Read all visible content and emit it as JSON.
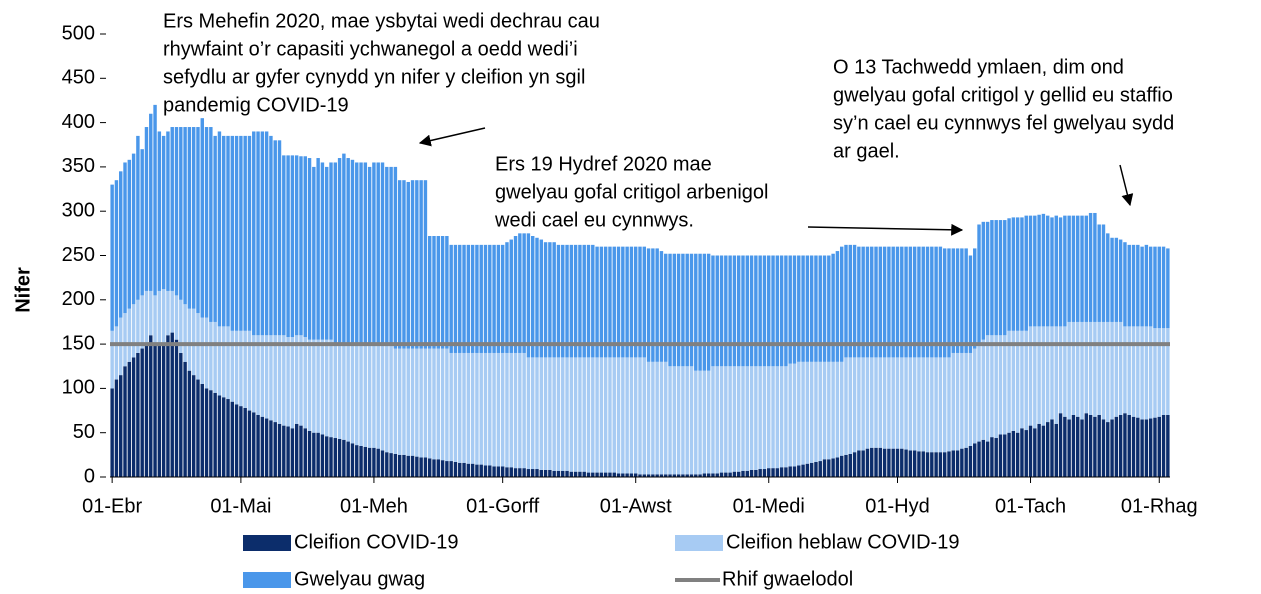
{
  "chart_data": {
    "type": "bar",
    "stacked": true,
    "y_label": "Nifer",
    "ylim": [
      0,
      500
    ],
    "yticks": [
      0,
      50,
      100,
      150,
      200,
      250,
      300,
      350,
      400,
      450,
      500
    ],
    "categories": [
      "01-Ebr",
      null,
      null,
      null,
      null,
      null,
      null,
      null,
      null,
      null,
      null,
      null,
      null,
      null,
      null,
      null,
      null,
      null,
      null,
      null,
      null,
      null,
      null,
      null,
      null,
      null,
      null,
      null,
      null,
      null,
      "01-Mai",
      null,
      null,
      null,
      null,
      null,
      null,
      null,
      null,
      null,
      null,
      null,
      null,
      null,
      null,
      null,
      null,
      null,
      null,
      null,
      null,
      null,
      null,
      null,
      null,
      null,
      null,
      null,
      null,
      null,
      null,
      "01-Meh",
      null,
      null,
      null,
      null,
      null,
      null,
      null,
      null,
      null,
      null,
      null,
      null,
      null,
      null,
      null,
      null,
      null,
      null,
      null,
      null,
      null,
      null,
      null,
      null,
      null,
      null,
      null,
      null,
      null,
      "01-Gorff",
      null,
      null,
      null,
      null,
      null,
      null,
      null,
      null,
      null,
      null,
      null,
      null,
      null,
      null,
      null,
      null,
      null,
      null,
      null,
      null,
      null,
      null,
      null,
      null,
      null,
      null,
      null,
      null,
      null,
      null,
      "01-Awst",
      null,
      null,
      null,
      null,
      null,
      null,
      null,
      null,
      null,
      null,
      null,
      null,
      null,
      null,
      null,
      null,
      null,
      null,
      null,
      null,
      null,
      null,
      null,
      null,
      null,
      null,
      null,
      null,
      null,
      null,
      "01-Medi",
      null,
      null,
      null,
      null,
      null,
      null,
      null,
      null,
      null,
      null,
      null,
      null,
      null,
      null,
      null,
      null,
      null,
      null,
      null,
      null,
      null,
      null,
      null,
      null,
      null,
      null,
      null,
      null,
      null,
      "01-Hyd",
      null,
      null,
      null,
      null,
      null,
      null,
      null,
      null,
      null,
      null,
      null,
      null,
      null,
      null,
      null,
      null,
      null,
      null,
      null,
      null,
      null,
      null,
      null,
      null,
      null,
      null,
      null,
      null,
      null,
      null,
      "01-Tach",
      null,
      null,
      null,
      null,
      null,
      null,
      null,
      null,
      null,
      null,
      null,
      null,
      null,
      null,
      null,
      null,
      null,
      null,
      null,
      null,
      null,
      null,
      null,
      null,
      null,
      null,
      null,
      null,
      null,
      "01-Rhag",
      null,
      null
    ],
    "series": [
      {
        "name": "Cleifion COVID-19",
        "color": "#0c2d6b",
        "values": [
          100,
          110,
          115,
          125,
          130,
          135,
          140,
          145,
          150,
          160,
          150,
          150,
          150,
          160,
          163,
          155,
          140,
          130,
          120,
          115,
          110,
          105,
          100,
          98,
          95,
          92,
          90,
          88,
          85,
          82,
          80,
          78,
          75,
          73,
          70,
          68,
          66,
          64,
          62,
          60,
          58,
          57,
          55,
          60,
          58,
          55,
          52,
          50,
          50,
          48,
          46,
          45,
          44,
          43,
          42,
          40,
          38,
          36,
          35,
          34,
          33,
          33,
          32,
          30,
          28,
          27,
          26,
          25,
          25,
          24,
          24,
          23,
          22,
          22,
          21,
          20,
          20,
          19,
          18,
          18,
          17,
          16,
          16,
          15,
          15,
          14,
          14,
          13,
          13,
          12,
          12,
          12,
          11,
          11,
          10,
          10,
          10,
          9,
          9,
          9,
          8,
          8,
          8,
          7,
          7,
          7,
          7,
          6,
          6,
          6,
          6,
          5,
          5,
          5,
          5,
          5,
          5,
          5,
          4,
          4,
          4,
          4,
          4,
          3,
          3,
          3,
          3,
          3,
          3,
          3,
          3,
          3,
          3,
          3,
          3,
          3,
          3,
          3,
          4,
          4,
          4,
          4,
          5,
          5,
          5,
          6,
          6,
          7,
          7,
          8,
          8,
          9,
          9,
          10,
          10,
          10,
          11,
          11,
          12,
          12,
          13,
          14,
          15,
          16,
          17,
          18,
          20,
          20,
          21,
          22,
          24,
          25,
          26,
          28,
          30,
          30,
          32,
          33,
          33,
          33,
          32,
          32,
          32,
          32,
          32,
          31,
          30,
          30,
          29,
          29,
          28,
          28,
          28,
          28,
          28,
          29,
          30,
          30,
          32,
          33,
          35,
          38,
          40,
          42,
          40,
          45,
          44,
          48,
          48,
          50,
          52,
          50,
          55,
          53,
          58,
          55,
          60,
          58,
          62,
          65,
          60,
          72,
          68,
          65,
          70,
          68,
          65,
          72,
          70,
          68,
          70,
          65,
          62,
          65,
          68,
          70,
          72,
          70,
          68,
          67,
          65,
          65,
          66,
          67,
          68,
          70,
          70
        ]
      },
      {
        "name": "Cleifion heblaw COVID-19",
        "color": "#a7cbf3",
        "values": [
          65,
          60,
          65,
          60,
          60,
          60,
          60,
          60,
          60,
          50,
          55,
          60,
          62,
          50,
          47,
          50,
          60,
          65,
          70,
          75,
          75,
          75,
          80,
          77,
          80,
          78,
          80,
          82,
          80,
          83,
          85,
          87,
          90,
          87,
          90,
          92,
          94,
          96,
          98,
          100,
          102,
          101,
          103,
          100,
          102,
          103,
          103,
          105,
          105,
          107,
          109,
          110,
          106,
          107,
          108,
          110,
          112,
          114,
          115,
          116,
          117,
          117,
          118,
          118,
          120,
          121,
          119,
          120,
          120,
          121,
          121,
          122,
          123,
          123,
          124,
          125,
          125,
          126,
          127,
          122,
          123,
          124,
          124,
          125,
          125,
          126,
          126,
          127,
          127,
          128,
          128,
          128,
          129,
          129,
          130,
          130,
          130,
          126,
          126,
          126,
          127,
          127,
          127,
          128,
          128,
          128,
          128,
          129,
          129,
          129,
          129,
          130,
          130,
          130,
          130,
          130,
          130,
          130,
          131,
          131,
          131,
          131,
          131,
          132,
          132,
          127,
          127,
          127,
          127,
          127,
          122,
          122,
          122,
          122,
          122,
          122,
          117,
          117,
          116,
          116,
          121,
          121,
          120,
          120,
          120,
          119,
          119,
          118,
          118,
          117,
          117,
          116,
          116,
          115,
          115,
          115,
          114,
          114,
          116,
          116,
          117,
          116,
          115,
          114,
          113,
          112,
          110,
          110,
          109,
          108,
          106,
          110,
          109,
          107,
          105,
          105,
          103,
          102,
          102,
          102,
          103,
          103,
          103,
          103,
          103,
          104,
          105,
          105,
          106,
          106,
          107,
          107,
          107,
          107,
          107,
          106,
          110,
          110,
          108,
          107,
          105,
          107,
          110,
          113,
          120,
          115,
          116,
          112,
          112,
          115,
          113,
          115,
          110,
          112,
          112,
          115,
          110,
          112,
          108,
          105,
          110,
          98,
          102,
          110,
          105,
          107,
          110,
          103,
          105,
          107,
          105,
          110,
          113,
          110,
          107,
          105,
          98,
          100,
          102,
          103,
          105,
          105,
          104,
          101,
          100,
          98,
          98
        ]
      },
      {
        "name": "Gwelyau gwag",
        "color": "#4a97ea",
        "values": [
          165,
          165,
          165,
          170,
          168,
          170,
          185,
          165,
          185,
          200,
          215,
          180,
          173,
          180,
          185,
          190,
          195,
          200,
          205,
          205,
          210,
          225,
          215,
          220,
          210,
          220,
          215,
          215,
          220,
          220,
          220,
          220,
          220,
          230,
          230,
          230,
          230,
          225,
          220,
          220,
          203,
          205,
          205,
          203,
          202,
          204,
          205,
          195,
          205,
          200,
          195,
          200,
          205,
          210,
          215,
          210,
          208,
          205,
          205,
          205,
          200,
          205,
          205,
          207,
          202,
          202,
          205,
          190,
          190,
          188,
          190,
          190,
          190,
          190,
          127,
          127,
          127,
          127,
          127,
          122,
          122,
          122,
          122,
          122,
          122,
          122,
          122,
          122,
          122,
          122,
          122,
          122,
          125,
          128,
          132,
          135,
          135,
          140,
          137,
          135,
          133,
          130,
          130,
          130,
          127,
          127,
          127,
          127,
          127,
          127,
          127,
          127,
          127,
          125,
          125,
          125,
          125,
          125,
          125,
          125,
          125,
          125,
          125,
          125,
          125,
          128,
          128,
          128,
          125,
          122,
          127,
          127,
          127,
          127,
          127,
          127,
          132,
          132,
          132,
          132,
          125,
          125,
          125,
          125,
          125,
          125,
          125,
          125,
          125,
          125,
          125,
          125,
          125,
          125,
          125,
          125,
          125,
          125,
          122,
          122,
          120,
          120,
          120,
          120,
          120,
          120,
          120,
          120,
          122,
          125,
          130,
          127,
          127,
          127,
          125,
          125,
          125,
          125,
          125,
          125,
          125,
          125,
          125,
          125,
          125,
          125,
          125,
          125,
          125,
          125,
          125,
          125,
          125,
          125,
          123,
          123,
          118,
          118,
          118,
          118,
          110,
          113,
          135,
          133,
          128,
          130,
          130,
          130,
          130,
          127,
          128,
          128,
          128,
          130,
          125,
          125,
          126,
          127,
          125,
          123,
          125,
          123,
          125,
          120,
          120,
          120,
          120,
          120,
          123,
          123,
          110,
          110,
          100,
          95,
          95,
          93,
          95,
          92,
          92,
          92,
          90,
          92,
          90,
          92,
          92,
          92,
          90
        ]
      }
    ],
    "reference_line": {
      "name": "Rhif gwaelodol",
      "value": 150,
      "color": "#808080"
    },
    "annotations": [
      {
        "lines": [
          "Ers Mehefin 2020, mae ysbytai wedi dechrau cau",
          "rhywfaint o’r capasiti ychwanegol a oedd wedi’i",
          "sefydlu ar gyfer cynydd yn nifer y cleifion yn sgil",
          "pandemig COVID-19"
        ]
      },
      {
        "lines": [
          "Ers 19 Hydref 2020 mae",
          "gwelyau gofal critigol arbenigol",
          "wedi cael eu cynnwys."
        ]
      },
      {
        "lines": [
          "O 13 Tachwedd ymlaen, dim ond",
          "gwelyau gofal critigol y gellid eu staffio",
          "sy’n cael eu cynnwys fel gwelyau sydd",
          "ar gael."
        ]
      }
    ]
  }
}
